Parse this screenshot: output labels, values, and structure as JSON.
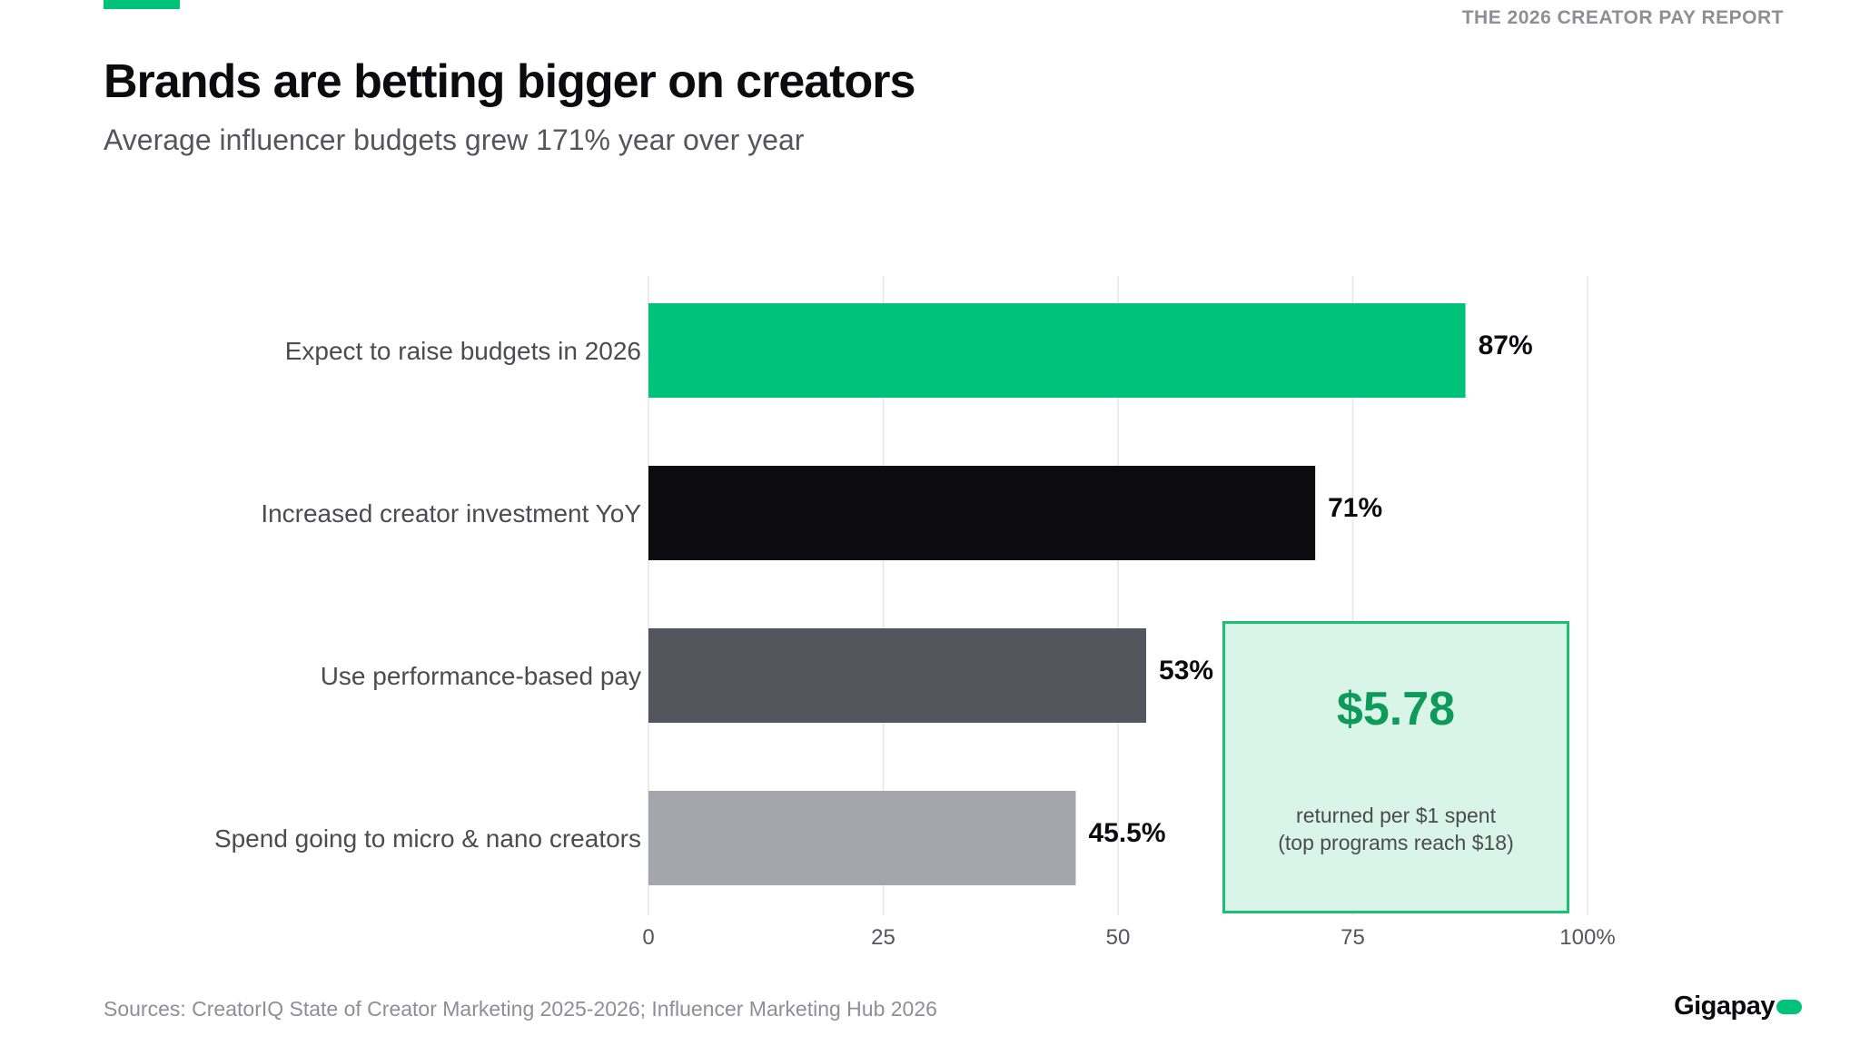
{
  "header": {
    "report_label": "THE 2026 CREATOR PAY REPORT",
    "title": "Brands are betting bigger on creators",
    "subtitle": "Average influencer budgets grew 171% year over year"
  },
  "colors": {
    "accent": "#00c27a",
    "dark": "#0c0c10",
    "mid_gray": "#55555d",
    "light_gray": "#a5a5ad",
    "callout_bg": "#d9f5e9",
    "callout_text": "#0e9b5a"
  },
  "chart_data": {
    "type": "bar",
    "orientation": "horizontal",
    "categories": [
      "Expect to raise budgets in 2026",
      "Increased creator investment YoY",
      "Use performance-based pay",
      "Spend going to micro & nano creators"
    ],
    "values": [
      87,
      71,
      53,
      45.5
    ],
    "value_labels": [
      "87%",
      "71%",
      "53%",
      "45.5%"
    ],
    "bar_colors": [
      "#00c27a",
      "#0c0c10",
      "#55555d",
      "#a5a5ad"
    ],
    "xlim": [
      0,
      100
    ],
    "xticks": [
      0,
      25,
      50,
      75,
      100
    ],
    "xtick_labels": [
      "0",
      "25",
      "50",
      "75",
      "100%"
    ],
    "grid": true
  },
  "callout": {
    "value": "$5.78",
    "line1": "returned per $1 spent",
    "line2": "(top programs reach $18)"
  },
  "footer": {
    "sources": "Sources: CreatorIQ State of Creator Marketing 2025-2026; Influencer Marketing Hub 2026",
    "logo_text": "Gigapay"
  }
}
